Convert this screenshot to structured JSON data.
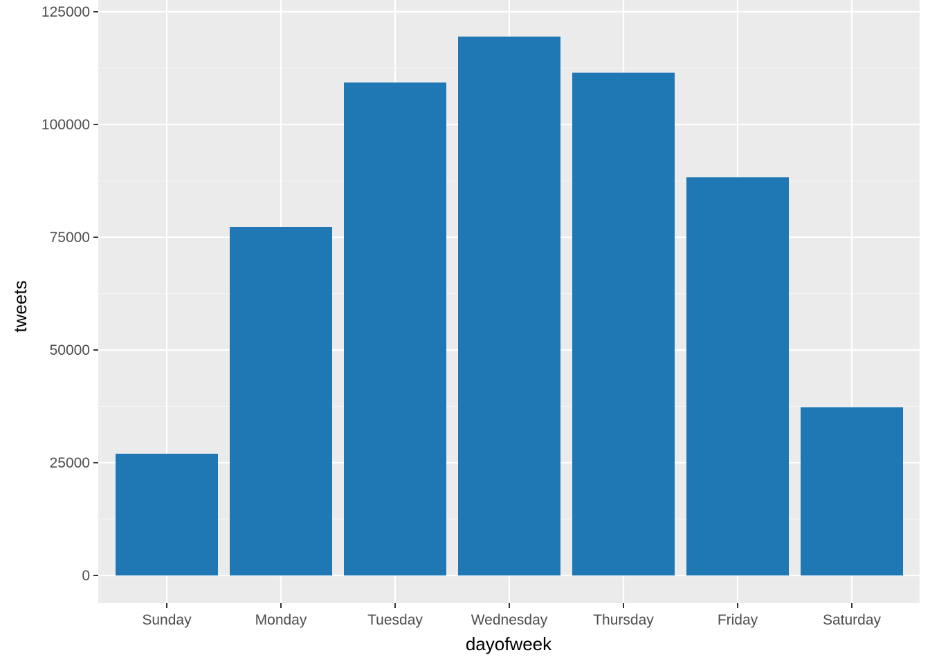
{
  "chart_data": {
    "type": "bar",
    "title": "",
    "xlabel": "dayofweek",
    "ylabel": "tweets",
    "categories": [
      "Sunday",
      "Monday",
      "Tuesday",
      "Wednesday",
      "Thursday",
      "Friday",
      "Saturday"
    ],
    "values": [
      27000,
      77300,
      109300,
      119500,
      111500,
      88300,
      37300
    ],
    "ylim": [
      0,
      125000
    ],
    "yticks": [
      0,
      25000,
      50000,
      75000,
      100000,
      125000
    ],
    "ytick_labels": [
      "0",
      "25000",
      "50000",
      "75000",
      "100000",
      "125000"
    ],
    "grid": true,
    "legend": "none",
    "colors": {
      "bar": "#1f77b4",
      "panel": "#ebebeb",
      "grid_major": "#ffffff",
      "grid_minor": "#f5f5f5"
    }
  }
}
